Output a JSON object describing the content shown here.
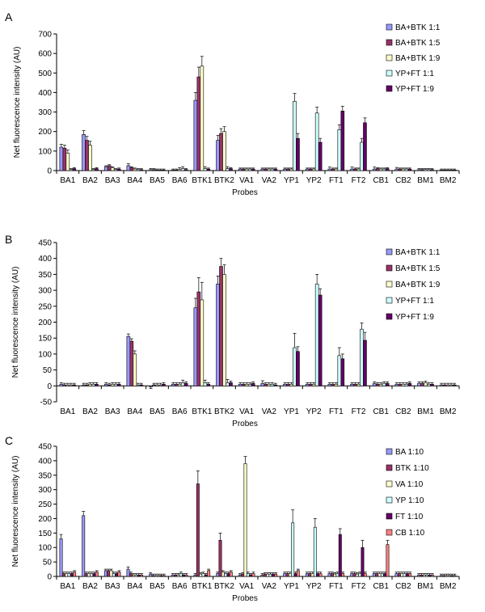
{
  "colors": {
    "lavender": "#9999ff",
    "plum": "#993366",
    "cream": "#ffffcc",
    "mint": "#ccffff",
    "purple": "#660066",
    "salmon": "#ff8080"
  },
  "chart_data": [
    {
      "panel": "A",
      "type": "bar",
      "ylabel": "Net fluorescence intensity (AU)",
      "xlabel": "Probes",
      "ylim": [
        0,
        700
      ],
      "yticks": [
        0,
        100,
        200,
        300,
        400,
        500,
        600,
        700
      ],
      "legend_position": "top-right",
      "grid": false,
      "categories": [
        "BA1",
        "BA2",
        "BA3",
        "BA4",
        "BA5",
        "BA6",
        "BTK1",
        "BTK2",
        "VA1",
        "VA2",
        "YP1",
        "YP2",
        "FT1",
        "FT2",
        "CB1",
        "CB2",
        "BM1",
        "BM2"
      ],
      "series": [
        {
          "name": "BA+BTK 1:1",
          "color": "lavender",
          "values": [
            120,
            185,
            20,
            25,
            5,
            3,
            360,
            155,
            8,
            8,
            8,
            8,
            8,
            8,
            8,
            8,
            5,
            3
          ],
          "errors": [
            15,
            20,
            5,
            10,
            5,
            5,
            40,
            25,
            5,
            5,
            5,
            5,
            10,
            10,
            10,
            8,
            5,
            5
          ]
        },
        {
          "name": "BA+BTK 1:5",
          "color": "plum",
          "values": [
            115,
            155,
            25,
            15,
            5,
            3,
            480,
            190,
            8,
            8,
            8,
            8,
            8,
            8,
            10,
            8,
            5,
            3
          ],
          "errors": [
            15,
            20,
            5,
            5,
            5,
            5,
            50,
            25,
            5,
            5,
            5,
            5,
            5,
            5,
            5,
            5,
            5,
            5
          ]
        },
        {
          "name": "BA+BTK 1:9",
          "color": "cream",
          "values": [
            90,
            130,
            15,
            8,
            3,
            5,
            535,
            200,
            8,
            8,
            8,
            8,
            8,
            8,
            8,
            8,
            5,
            3
          ],
          "errors": [
            15,
            20,
            5,
            5,
            5,
            10,
            50,
            25,
            5,
            5,
            5,
            5,
            5,
            5,
            5,
            5,
            5,
            5
          ]
        },
        {
          "name": "YP+FT 1:1",
          "color": "mint",
          "values": [
            5,
            5,
            5,
            5,
            3,
            10,
            10,
            10,
            8,
            8,
            355,
            295,
            210,
            145,
            8,
            8,
            5,
            3
          ],
          "errors": [
            5,
            5,
            5,
            5,
            5,
            10,
            10,
            10,
            5,
            5,
            40,
            30,
            25,
            20,
            5,
            5,
            5,
            5
          ]
        },
        {
          "name": "YP+FT 1:9",
          "color": "purple",
          "values": [
            10,
            10,
            8,
            5,
            3,
            5,
            8,
            10,
            8,
            8,
            165,
            145,
            305,
            245,
            10,
            8,
            5,
            3
          ],
          "errors": [
            5,
            5,
            5,
            5,
            5,
            5,
            5,
            5,
            5,
            5,
            25,
            20,
            25,
            25,
            5,
            5,
            5,
            5
          ]
        }
      ]
    },
    {
      "panel": "B",
      "type": "bar",
      "ylabel": "Net fluorescence intensity (AU)",
      "xlabel": "Probes",
      "ylim": [
        -50,
        450
      ],
      "yticks": [
        -50,
        0,
        50,
        100,
        150,
        200,
        250,
        300,
        350,
        400,
        450
      ],
      "legend_position": "top-right",
      "grid": false,
      "categories": [
        "BA1",
        "BA2",
        "BA3",
        "BA4",
        "BA5",
        "BA6",
        "BTK1",
        "BTK2",
        "VA1",
        "VA2",
        "YP1",
        "YP2",
        "FT1",
        "FT2",
        "CB1",
        "CB2",
        "BM1",
        "BM2"
      ],
      "series": [
        {
          "name": "BA+BTK 1:1",
          "color": "lavender",
          "values": [
            5,
            3,
            5,
            155,
            -3,
            5,
            245,
            320,
            5,
            8,
            5,
            5,
            5,
            5,
            8,
            5,
            8,
            3
          ],
          "errors": [
            5,
            5,
            5,
            8,
            5,
            5,
            30,
            25,
            5,
            8,
            5,
            5,
            5,
            5,
            5,
            5,
            5,
            5
          ]
        },
        {
          "name": "BA+BTK 1:5",
          "color": "plum",
          "values": [
            3,
            3,
            3,
            140,
            3,
            5,
            295,
            375,
            5,
            5,
            5,
            5,
            5,
            5,
            5,
            5,
            8,
            3
          ],
          "errors": [
            5,
            5,
            5,
            8,
            5,
            5,
            45,
            25,
            5,
            5,
            5,
            5,
            5,
            5,
            5,
            5,
            5,
            5
          ]
        },
        {
          "name": "BA+BTK 1:9",
          "color": "cream",
          "values": [
            3,
            5,
            5,
            100,
            3,
            5,
            270,
            350,
            5,
            5,
            5,
            5,
            5,
            5,
            5,
            5,
            10,
            3
          ],
          "errors": [
            5,
            5,
            5,
            10,
            5,
            5,
            55,
            30,
            5,
            5,
            5,
            5,
            5,
            5,
            5,
            5,
            5,
            5
          ]
        },
        {
          "name": "YP+FT 1:1",
          "color": "mint",
          "values": [
            3,
            5,
            5,
            3,
            3,
            10,
            10,
            10,
            5,
            5,
            120,
            320,
            95,
            178,
            8,
            5,
            5,
            3
          ],
          "errors": [
            5,
            5,
            5,
            5,
            5,
            8,
            8,
            10,
            5,
            5,
            45,
            30,
            25,
            20,
            5,
            5,
            5,
            5
          ]
        },
        {
          "name": "YP+FT 1:9",
          "color": "purple",
          "values": [
            3,
            5,
            5,
            3,
            5,
            8,
            5,
            10,
            8,
            3,
            108,
            285,
            85,
            143,
            8,
            8,
            5,
            3
          ],
          "errors": [
            5,
            5,
            5,
            5,
            5,
            5,
            5,
            5,
            5,
            5,
            15,
            20,
            15,
            25,
            5,
            5,
            5,
            5
          ]
        }
      ]
    },
    {
      "panel": "C",
      "type": "bar",
      "ylabel": "Net fluorescence intensity (AU)",
      "xlabel": "Probes",
      "ylim": [
        0,
        450
      ],
      "yticks": [
        0,
        50,
        100,
        150,
        200,
        250,
        300,
        350,
        400,
        450
      ],
      "legend_position": "top-right",
      "grid": false,
      "categories": [
        "BA1",
        "BA2",
        "BA3",
        "BA4",
        "BA5",
        "BA6",
        "BTK1",
        "BTK2",
        "VA1",
        "VA2",
        "YP1",
        "YP2",
        "FT1",
        "FT2",
        "CB1",
        "CB2",
        "BM1",
        "BM2"
      ],
      "series": [
        {
          "name": "BA 1:10",
          "color": "lavender",
          "values": [
            130,
            210,
            20,
            25,
            8,
            5,
            5,
            10,
            5,
            5,
            10,
            10,
            10,
            10,
            10,
            10,
            5,
            3
          ],
          "errors": [
            15,
            15,
            5,
            8,
            5,
            5,
            5,
            5,
            5,
            5,
            5,
            5,
            5,
            5,
            5,
            5,
            5,
            5
          ]
        },
        {
          "name": "BTK 1:10",
          "color": "plum",
          "values": [
            10,
            10,
            20,
            10,
            3,
            5,
            320,
            125,
            8,
            8,
            10,
            10,
            10,
            10,
            10,
            10,
            5,
            3
          ],
          "errors": [
            5,
            5,
            5,
            5,
            5,
            5,
            45,
            25,
            5,
            5,
            5,
            5,
            5,
            5,
            5,
            5,
            5,
            5
          ]
        },
        {
          "name": "VA 1:10",
          "color": "cream",
          "values": [
            10,
            10,
            20,
            5,
            3,
            5,
            8,
            15,
            390,
            8,
            10,
            10,
            8,
            8,
            10,
            10,
            5,
            3
          ],
          "errors": [
            5,
            5,
            5,
            5,
            5,
            5,
            5,
            5,
            25,
            5,
            5,
            5,
            5,
            5,
            5,
            5,
            5,
            5
          ]
        },
        {
          "name": "YP 1:10",
          "color": "mint",
          "values": [
            10,
            10,
            10,
            5,
            3,
            10,
            10,
            10,
            10,
            8,
            185,
            170,
            10,
            10,
            10,
            10,
            5,
            3
          ],
          "errors": [
            5,
            5,
            5,
            5,
            5,
            5,
            5,
            5,
            5,
            5,
            45,
            30,
            5,
            5,
            5,
            5,
            5,
            5
          ]
        },
        {
          "name": "FT 1:10",
          "color": "purple",
          "values": [
            10,
            10,
            10,
            5,
            3,
            5,
            5,
            10,
            5,
            8,
            10,
            10,
            145,
            100,
            10,
            10,
            5,
            3
          ],
          "errors": [
            5,
            5,
            5,
            5,
            5,
            5,
            5,
            5,
            5,
            5,
            5,
            5,
            20,
            25,
            5,
            5,
            5,
            5
          ]
        },
        {
          "name": "CB 1:10",
          "color": "salmon",
          "values": [
            15,
            15,
            15,
            5,
            3,
            5,
            20,
            15,
            10,
            8,
            20,
            10,
            10,
            10,
            110,
            10,
            5,
            3
          ],
          "errors": [
            5,
            5,
            5,
            5,
            5,
            5,
            5,
            5,
            5,
            5,
            5,
            5,
            5,
            5,
            15,
            5,
            5,
            5
          ]
        }
      ]
    }
  ]
}
